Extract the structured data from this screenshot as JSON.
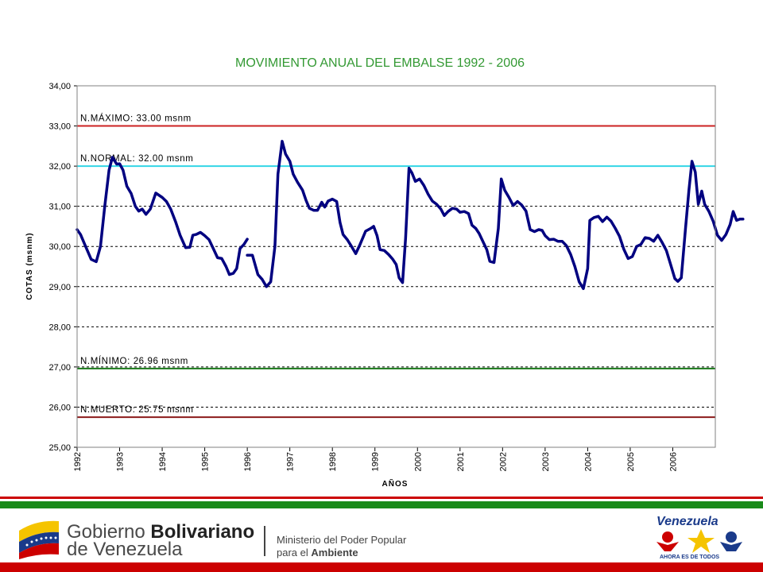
{
  "chart_data": {
    "type": "line",
    "title": "MOVIMIENTO ANUAL DEL EMBALSE 1992 - 2006",
    "xlabel": "AÑOS",
    "ylabel": "COTAS (msnm)",
    "ylim": [
      25.0,
      34.0
    ],
    "yticks": [
      "25,00",
      "26,00",
      "27,00",
      "28,00",
      "29,00",
      "30,00",
      "31,00",
      "32,00",
      "33,00",
      "34,00"
    ],
    "xlim": [
      1992.0,
      2007.0
    ],
    "xticks": [
      "1992",
      "1993",
      "1994",
      "1995",
      "1996",
      "1997",
      "1998",
      "1999",
      "2000",
      "2001",
      "2002",
      "2003",
      "2004",
      "2005",
      "2006"
    ],
    "grid": "horizontal dashed",
    "series": [
      {
        "name": "",
        "color": "#000080",
        "segments": [
          [
            [
              1992.0,
              30.42
            ],
            [
              1992.08,
              30.3
            ],
            [
              1992.2,
              30.0
            ],
            [
              1992.33,
              29.68
            ],
            [
              1992.45,
              29.62
            ],
            [
              1992.55,
              30.0
            ],
            [
              1992.65,
              31.0
            ],
            [
              1992.75,
              31.9
            ],
            [
              1992.83,
              32.22
            ],
            [
              1992.93,
              32.05
            ],
            [
              1993.0,
              32.06
            ],
            [
              1993.08,
              31.9
            ],
            [
              1993.17,
              31.5
            ],
            [
              1993.27,
              31.32
            ],
            [
              1993.37,
              31.0
            ],
            [
              1993.45,
              30.88
            ],
            [
              1993.53,
              30.93
            ],
            [
              1993.62,
              30.8
            ],
            [
              1993.72,
              30.93
            ],
            [
              1993.85,
              31.33
            ],
            [
              1994.0,
              31.22
            ],
            [
              1994.1,
              31.12
            ],
            [
              1994.2,
              30.93
            ],
            [
              1994.32,
              30.6
            ],
            [
              1994.42,
              30.28
            ],
            [
              1994.55,
              29.97
            ],
            [
              1994.65,
              29.98
            ],
            [
              1994.72,
              30.28
            ],
            [
              1994.8,
              30.3
            ],
            [
              1994.9,
              30.35
            ],
            [
              1995.0,
              30.27
            ],
            [
              1995.1,
              30.17
            ],
            [
              1995.2,
              29.95
            ],
            [
              1995.3,
              29.72
            ],
            [
              1995.4,
              29.7
            ],
            [
              1995.5,
              29.5
            ],
            [
              1995.58,
              29.3
            ],
            [
              1995.67,
              29.33
            ],
            [
              1995.75,
              29.45
            ],
            [
              1995.83,
              29.95
            ],
            [
              1995.92,
              30.05
            ],
            [
              1996.0,
              30.18
            ]
          ],
          [
            [
              1996.0,
              29.78
            ],
            [
              1996.12,
              29.78
            ],
            [
              1996.25,
              29.3
            ],
            [
              1996.35,
              29.18
            ],
            [
              1996.45,
              29.0
            ],
            [
              1996.55,
              29.12
            ],
            [
              1996.65,
              30.0
            ],
            [
              1996.72,
              31.8
            ],
            [
              1996.82,
              32.62
            ],
            [
              1996.9,
              32.3
            ],
            [
              1997.0,
              32.12
            ],
            [
              1997.08,
              31.8
            ],
            [
              1997.18,
              31.6
            ],
            [
              1997.3,
              31.4
            ],
            [
              1997.38,
              31.15
            ],
            [
              1997.46,
              30.95
            ],
            [
              1997.56,
              30.9
            ],
            [
              1997.65,
              30.9
            ],
            [
              1997.75,
              31.1
            ],
            [
              1997.82,
              30.98
            ],
            [
              1997.9,
              31.13
            ],
            [
              1998.0,
              31.18
            ],
            [
              1998.1,
              31.12
            ],
            [
              1998.18,
              30.6
            ],
            [
              1998.25,
              30.3
            ],
            [
              1998.35,
              30.17
            ],
            [
              1998.45,
              30.0
            ],
            [
              1998.55,
              29.82
            ],
            [
              1998.65,
              30.05
            ],
            [
              1998.78,
              30.38
            ],
            [
              1998.9,
              30.45
            ],
            [
              1998.97,
              30.5
            ],
            [
              1999.05,
              30.27
            ],
            [
              1999.12,
              29.92
            ],
            [
              1999.22,
              29.9
            ],
            [
              1999.32,
              29.8
            ],
            [
              1999.42,
              29.68
            ],
            [
              1999.5,
              29.55
            ],
            [
              1999.57,
              29.22
            ],
            [
              1999.65,
              29.1
            ],
            [
              1999.72,
              30.2
            ],
            [
              1999.8,
              31.95
            ],
            [
              1999.87,
              31.83
            ],
            [
              1999.95,
              31.62
            ],
            [
              2000.05,
              31.68
            ],
            [
              2000.15,
              31.52
            ],
            [
              2000.25,
              31.3
            ],
            [
              2000.35,
              31.13
            ],
            [
              2000.45,
              31.05
            ],
            [
              2000.55,
              30.93
            ],
            [
              2000.63,
              30.77
            ],
            [
              2000.72,
              30.87
            ],
            [
              2000.82,
              30.95
            ],
            [
              2000.92,
              30.93
            ],
            [
              2001.0,
              30.85
            ],
            [
              2001.1,
              30.87
            ],
            [
              2001.2,
              30.82
            ],
            [
              2001.28,
              30.53
            ],
            [
              2001.37,
              30.45
            ],
            [
              2001.45,
              30.32
            ],
            [
              2001.55,
              30.1
            ],
            [
              2001.63,
              29.92
            ],
            [
              2001.7,
              29.63
            ],
            [
              2001.8,
              29.6
            ],
            [
              2001.9,
              30.45
            ],
            [
              2001.97,
              31.68
            ],
            [
              2002.05,
              31.4
            ],
            [
              2002.15,
              31.22
            ],
            [
              2002.25,
              31.02
            ],
            [
              2002.35,
              31.12
            ],
            [
              2002.45,
              31.03
            ],
            [
              2002.55,
              30.88
            ],
            [
              2002.65,
              30.42
            ],
            [
              2002.75,
              30.37
            ],
            [
              2002.85,
              30.42
            ],
            [
              2002.93,
              30.4
            ],
            [
              2003.0,
              30.27
            ],
            [
              2003.1,
              30.17
            ],
            [
              2003.2,
              30.18
            ],
            [
              2003.3,
              30.13
            ],
            [
              2003.4,
              30.13
            ],
            [
              2003.5,
              30.02
            ],
            [
              2003.6,
              29.8
            ],
            [
              2003.7,
              29.5
            ],
            [
              2003.8,
              29.12
            ],
            [
              2003.9,
              28.95
            ],
            [
              2004.0,
              29.45
            ],
            [
              2004.05,
              30.65
            ],
            [
              2004.15,
              30.72
            ],
            [
              2004.25,
              30.75
            ],
            [
              2004.35,
              30.62
            ],
            [
              2004.45,
              30.73
            ],
            [
              2004.55,
              30.63
            ],
            [
              2004.65,
              30.45
            ],
            [
              2004.75,
              30.25
            ],
            [
              2004.85,
              29.93
            ],
            [
              2004.95,
              29.7
            ],
            [
              2005.05,
              29.75
            ],
            [
              2005.15,
              30.0
            ],
            [
              2005.25,
              30.05
            ],
            [
              2005.35,
              30.22
            ],
            [
              2005.45,
              30.2
            ],
            [
              2005.55,
              30.13
            ],
            [
              2005.65,
              30.28
            ],
            [
              2005.75,
              30.1
            ],
            [
              2005.85,
              29.9
            ],
            [
              2005.95,
              29.55
            ],
            [
              2006.05,
              29.2
            ],
            [
              2006.12,
              29.13
            ],
            [
              2006.2,
              29.22
            ],
            [
              2006.3,
              30.45
            ],
            [
              2006.38,
              31.4
            ],
            [
              2006.45,
              32.12
            ],
            [
              2006.53,
              31.85
            ],
            [
              2006.6,
              31.05
            ],
            [
              2006.68,
              31.38
            ],
            [
              2006.75,
              31.05
            ],
            [
              2006.85,
              30.87
            ],
            [
              2006.95,
              30.63
            ],
            [
              2007.05,
              30.28
            ],
            [
              2007.15,
              30.15
            ],
            [
              2007.25,
              30.3
            ],
            [
              2007.35,
              30.55
            ],
            [
              2007.42,
              30.87
            ],
            [
              2007.5,
              30.65
            ],
            [
              2007.58,
              30.68
            ],
            [
              2007.65,
              30.68
            ]
          ]
        ]
      }
    ],
    "reference_lines": [
      {
        "label": "N.MÁXIMO: 33.00 msnm",
        "value": 33.0,
        "color": "#cc2222"
      },
      {
        "label": "N.NORMAL: 32.00 msnm",
        "value": 32.0,
        "color": "#33d6e6"
      },
      {
        "label": "N.MÍNIMO: 26.96 msnm",
        "value": 26.96,
        "color": "#1a7a1a"
      },
      {
        "label": "N.MUERTO: 25.75 msnm",
        "value": 25.75,
        "color": "#8b1a1a"
      }
    ]
  },
  "footer": {
    "gov_line1_a": "Gobierno ",
    "gov_line1_b": "Bolivariano",
    "gov_line2": "de Venezuela",
    "ministry_line1": "Ministerio del Poder Popular",
    "ministry_line2_a": "para el ",
    "ministry_line2_b": "Ambiente",
    "venezuela_logo": "Venezuela",
    "venezuela_tagline": "AHORA ES DE TODOS",
    "colors": {
      "red": "#cc0000",
      "green": "#1a8a1a",
      "yellow": "#f5c400",
      "blue": "#1a3a8a"
    }
  }
}
